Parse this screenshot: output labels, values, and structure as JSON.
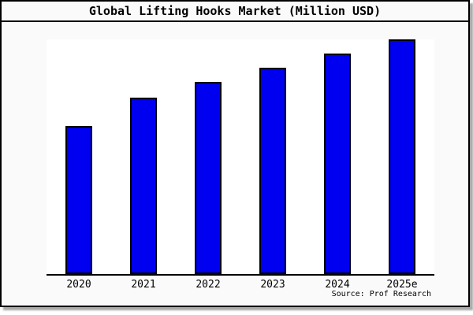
{
  "page": {
    "title": "Global Lifting Hooks Market (Million USD)",
    "source": "Source: Prof Research"
  },
  "colors": {
    "bar_fill": "#0000f0",
    "bar_border": "#000000",
    "axis": "#000000",
    "page_bg": "#fafafa",
    "plot_bg": "#ffffff"
  },
  "chart_data": {
    "type": "bar",
    "title": "Global Lifting Hooks Market (Million USD)",
    "categories": [
      "2020",
      "2021",
      "2022",
      "2023",
      "2024",
      "2025e"
    ],
    "values": [
      63,
      75,
      82,
      88,
      94,
      100
    ],
    "xlabel": "",
    "ylabel": "",
    "ylim": [
      0,
      100
    ],
    "grid": false,
    "legend": false,
    "source": "Source: Prof Research"
  }
}
